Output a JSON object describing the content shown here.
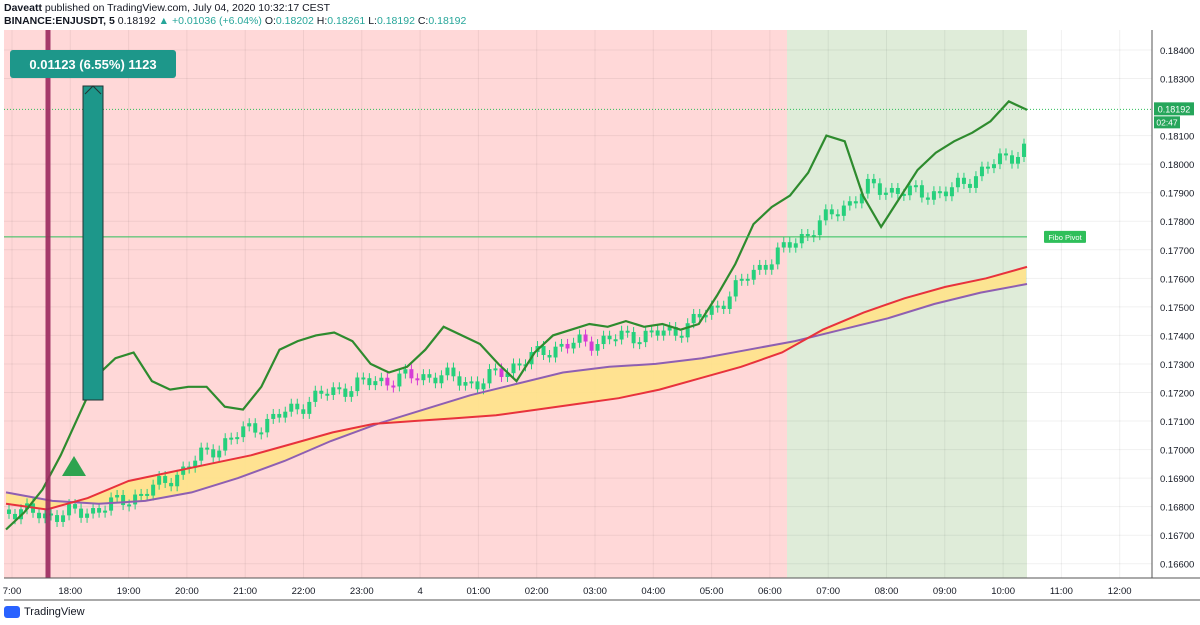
{
  "header": {
    "publisher": "Daveatt",
    "published_text": "published on TradingView.com, July 04, 2020 10:32:17 CEST",
    "symbol": "BINANCE:ENJUSDT, 5",
    "last": "0.18192",
    "change": "▲ +0.01036 (+6.04%)",
    "o_label": "O:",
    "o": "0.18202",
    "h_label": "H:",
    "h": "0.18261",
    "l_label": "L:",
    "l": "0.18192",
    "c_label": "C:",
    "c": "0.18192"
  },
  "measure_label": "0.01123 (6.55%) 1123",
  "footer": {
    "brand": "TradingView"
  },
  "colors": {
    "bg_red": "#ffd8d8",
    "bg_green": "#dfecd9",
    "up": "#26d07c",
    "down": "#26d07c",
    "ma_green": "#2e8b2e",
    "ma_red": "#e8323c",
    "ma_purple": "#8e5fb2",
    "cloud": "#ffe38a",
    "magenta": "#d63bd6",
    "teal": "#1d978a",
    "vline": "#9c2a5f"
  },
  "chart_data": {
    "type": "line",
    "ylim": [
      0.1655,
      0.1847
    ],
    "y_ticks": [
      "0.18400",
      "0.18300",
      "0.18100",
      "0.18000",
      "0.17900",
      "0.17800",
      "0.17700",
      "0.17600",
      "0.17500",
      "0.17400",
      "0.17300",
      "0.17200",
      "0.17100",
      "0.17000",
      "0.16900",
      "0.16800",
      "0.16700",
      "0.16600"
    ],
    "x_ticks": [
      "7:00",
      "18:00",
      "19:00",
      "20:00",
      "21:00",
      "22:00",
      "23:00",
      "4",
      "01:00",
      "02:00",
      "03:00",
      "04:00",
      "05:00",
      "06:00",
      "07:00",
      "08:00",
      "09:00",
      "10:00",
      "11:00",
      "12:00"
    ],
    "price_label": "0.18192",
    "countdown_label": "02:47",
    "fibo_label": "Fibo Pivot",
    "fibo_level": 0.17745,
    "price_line": 0.18192,
    "series": [
      {
        "values": [
          0.1672,
          0.1678,
          0.1686,
          0.1698,
          0.1712,
          0.1726,
          0.1732,
          0.1734,
          0.1724,
          0.1721,
          0.1722,
          0.1722,
          0.1715,
          0.1714,
          0.1722,
          0.1735,
          0.1738,
          0.174,
          0.1741,
          0.1738,
          0.173,
          0.1727,
          0.1729,
          0.1735,
          0.1743,
          0.174,
          0.1737,
          0.173,
          0.1724,
          0.1734,
          0.174,
          0.1742,
          0.1744,
          0.1743,
          0.1745,
          0.1743,
          0.1744,
          0.1742,
          0.1744,
          0.1754,
          0.1765,
          0.1779,
          0.1785,
          0.1789,
          0.1797,
          0.181,
          0.1808,
          0.1789,
          0.1778,
          0.1788,
          0.1798,
          0.1804,
          0.1808,
          0.1811,
          0.1815,
          0.1822,
          0.1819
        ]
      },
      {
        "values": [
          0.1681,
          0.1679,
          0.1683,
          0.1689,
          0.1692,
          0.1695,
          0.1698,
          0.1702,
          0.1706,
          0.1709,
          0.171,
          0.1711,
          0.1712,
          0.1714,
          0.1716,
          0.1718,
          0.1721,
          0.1725,
          0.1729,
          0.1734,
          0.1742,
          0.1748,
          0.1753,
          0.1757,
          0.176,
          0.1764
        ]
      },
      {
        "values": [
          0.1685,
          0.1682,
          0.1681,
          0.1682,
          0.1685,
          0.169,
          0.1696,
          0.1703,
          0.1709,
          0.1714,
          0.1719,
          0.1723,
          0.1727,
          0.1729,
          0.173,
          0.1732,
          0.1735,
          0.1738,
          0.1742,
          0.1746,
          0.1751,
          0.1755,
          0.1758
        ]
      },
      {
        "values": [
          0.1679,
          0.1677,
          0.1678,
          0.1682,
          0.1688,
          0.1698,
          0.1706,
          0.1712,
          0.1719,
          0.1723,
          0.1725,
          0.1726,
          0.1723,
          0.173,
          0.1736,
          0.1738,
          0.174,
          0.1741,
          0.1749,
          0.1762,
          0.1772,
          0.1782,
          0.1792,
          0.179,
          0.179,
          0.1799,
          0.1806
        ]
      }
    ]
  }
}
